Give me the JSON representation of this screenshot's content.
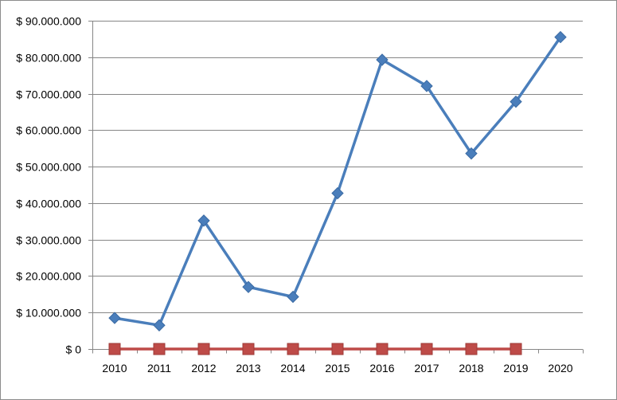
{
  "chart_data": {
    "type": "line",
    "title": "",
    "xlabel": "",
    "ylabel": "",
    "categories": [
      "2010",
      "2011",
      "2012",
      "2013",
      "2014",
      "2015",
      "2016",
      "2017",
      "2018",
      "2019",
      "2020"
    ],
    "ylim": [
      0,
      90000000
    ],
    "y_ticks": [
      0,
      10000000,
      20000000,
      30000000,
      40000000,
      50000000,
      60000000,
      70000000,
      80000000,
      90000000
    ],
    "y_tick_labels": [
      "$ 0",
      "$ 10.000.000",
      "$ 20.000.000",
      "$ 30.000.000",
      "$ 40.000.000",
      "$ 50.000.000",
      "$ 60.000.000",
      "$ 70.000.000",
      "$ 80.000.000",
      "$ 90.000.000"
    ],
    "grid": true,
    "legend": "none",
    "series": [
      {
        "color": "#4a7ebb",
        "marker": "diamond",
        "values": [
          8500000,
          6500000,
          35200000,
          17000000,
          14300000,
          42700000,
          79300000,
          72100000,
          53600000,
          67800000,
          85500000
        ]
      },
      {
        "color": "#be4b48",
        "marker": "square",
        "values": [
          0,
          0,
          0,
          0,
          0,
          0,
          0,
          0,
          0,
          0,
          null
        ]
      }
    ]
  }
}
